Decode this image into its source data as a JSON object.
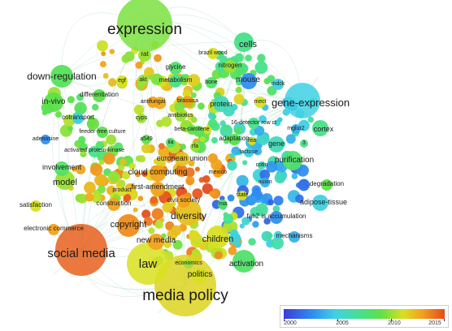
{
  "colors": {
    "c2000": "#3b3bd9",
    "c2004": "#2f8ff0",
    "c2006": "#3ed1e4",
    "c2008": "#48e08a",
    "c2010": "#5ce04a",
    "c2012": "#d8e020",
    "c2013": "#f2a21e",
    "c2015": "#e44a1c"
  },
  "legend": {
    "ticks": [
      "2000",
      "2005",
      "2010",
      "2015"
    ]
  },
  "terms": [
    {
      "label": "expression",
      "year": 2010.5
    },
    {
      "label": "media policy",
      "year": 2012.2
    },
    {
      "label": "social media",
      "year": 2014.5
    },
    {
      "label": "law",
      "year": 2012.0
    },
    {
      "label": "gene-expression",
      "year": 2006.0
    },
    {
      "label": "down-regulation",
      "year": 2009.5
    },
    {
      "label": "cells",
      "year": 2008.0
    },
    {
      "label": "diversity",
      "year": 2012.5
    },
    {
      "label": "children",
      "year": 2012.0
    },
    {
      "label": "activation",
      "year": 2009.0
    },
    {
      "label": "copyright",
      "year": 2013.5
    },
    {
      "label": "mouse",
      "year": 2004.0
    },
    {
      "label": "protein",
      "year": 2007.0
    },
    {
      "label": "model",
      "year": 2011.0
    },
    {
      "label": "in-vivo",
      "year": 2010.0
    },
    {
      "label": "purification",
      "year": 2009.0
    },
    {
      "label": "cloud computing",
      "year": 2013.0
    },
    {
      "label": "politics",
      "year": 2012.0
    },
    {
      "label": "new media",
      "year": 2013.0
    },
    {
      "label": "cortex",
      "year": 2008.0
    },
    {
      "label": "adipose-tissue",
      "year": 2006.0
    },
    {
      "label": "gene",
      "year": 2007.0
    },
    {
      "label": "involvement",
      "year": 2009.0
    },
    {
      "label": "european union",
      "year": 2012.5
    },
    {
      "label": "first-amendment",
      "year": 2013.0
    },
    {
      "label": "construction",
      "year": 2013.0
    },
    {
      "label": "civil society",
      "year": 2013.0
    },
    {
      "label": "rat",
      "year": 2011.0
    },
    {
      "label": "differentiation",
      "year": 2010.0
    },
    {
      "label": "metabolism",
      "year": 2008.0
    },
    {
      "label": "glycine",
      "year": 2009.0
    },
    {
      "label": "nitrogen",
      "year": 2011.0
    },
    {
      "label": "brazil wood",
      "year": 2012.0
    },
    {
      "label": "egf",
      "year": 2012.0
    },
    {
      "label": "akt",
      "year": 2011.0
    },
    {
      "label": "bone",
      "year": 2009.0
    },
    {
      "label": "mdck",
      "year": 2006.0
    },
    {
      "label": "cotransport",
      "year": 2006.0
    },
    {
      "label": "antifungal",
      "year": 2013.0
    },
    {
      "label": "brassica",
      "year": 2013.0
    },
    {
      "label": "mect",
      "year": 2012.0
    },
    {
      "label": "feeder-free culture",
      "year": 2010.0
    },
    {
      "label": "cyps",
      "year": 2011.0
    },
    {
      "label": "antibiotics",
      "year": 2011.0
    },
    {
      "label": "16-detector row ct",
      "year": 2008.0
    },
    {
      "label": "adenosine",
      "year": 2004.0
    },
    {
      "label": "beta-carotene",
      "year": 2010.0
    },
    {
      "label": "mglur2",
      "year": 2005.0
    },
    {
      "label": "activated protein-kinase",
      "year": 2008.0
    },
    {
      "label": "a549",
      "year": 2010.0
    },
    {
      "label": "iia",
      "year": 2009.0
    },
    {
      "label": "rfa",
      "year": 2011.0
    },
    {
      "label": "adaptation",
      "year": 2010.0
    },
    {
      "label": "lactose",
      "year": 2006.0
    },
    {
      "label": "rea",
      "year": 2012.0
    },
    {
      "label": "3",
      "year": 2008.0
    },
    {
      "label": "mexico",
      "year": 2013.0
    },
    {
      "label": "cotin",
      "year": 2007.0
    },
    {
      "label": "degradation",
      "year": 2010.0
    },
    {
      "label": "auxin",
      "year": 2005.0
    },
    {
      "label": "product",
      "year": 2012.0
    },
    {
      "label": "state",
      "year": 2012.0
    },
    {
      "label": "satisfaction",
      "year": 2012.0
    },
    {
      "label": "rna",
      "year": 2009.0
    },
    {
      "label": "fah2 is accumulation",
      "year": 2004.0
    },
    {
      "label": "electronic commerce",
      "year": 2013.0
    },
    {
      "label": "mechanisms",
      "year": 2005.0
    },
    {
      "label": "economics",
      "year": 2011.0
    }
  ]
}
